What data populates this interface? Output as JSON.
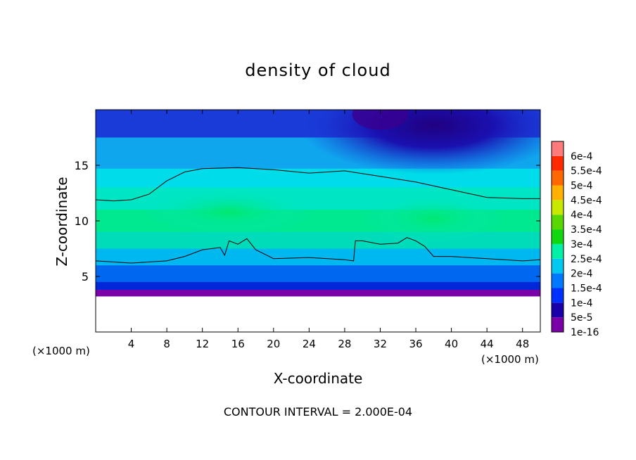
{
  "chart_data": {
    "type": "heatmap",
    "title": "density of cloud",
    "xlabel": "X-coordinate",
    "ylabel": "Z-coordinate",
    "x_unit_left": "(×1000 m)",
    "x_unit_right": "(×1000 m)",
    "xlim": [
      0,
      50
    ],
    "ylim": [
      0,
      20
    ],
    "x_ticks": [
      "4",
      "8",
      "12",
      "16",
      "20",
      "24",
      "28",
      "32",
      "36",
      "40",
      "44",
      "48"
    ],
    "y_ticks": [
      "5",
      "10",
      "15"
    ],
    "colorbar_labels": [
      "1e-16",
      "5e-5",
      "1e-4",
      "1.5e-4",
      "2e-4",
      "2.5e-4",
      "3e-4",
      "3.5e-4",
      "4e-4",
      "4.5e-4",
      "5e-4",
      "5.5e-4",
      "6e-4"
    ],
    "colorbar_colors": [
      "#7a00a8",
      "#1a00a8",
      "#0030ff",
      "#0078ff",
      "#00c8f0",
      "#00f0a8",
      "#10d810",
      "#58d800",
      "#c8e800",
      "#ffb000",
      "#ff6800",
      "#ff2a00",
      "#ff7a7a"
    ],
    "cloud_base": 3.2,
    "contour_lower": [
      [
        0,
        6.4
      ],
      [
        4,
        6.2
      ],
      [
        8,
        6.4
      ],
      [
        10,
        6.8
      ],
      [
        12,
        7.4
      ],
      [
        14,
        7.6
      ],
      [
        14.5,
        6.9
      ],
      [
        15,
        8.2
      ],
      [
        16,
        7.9
      ],
      [
        17,
        8.4
      ],
      [
        18,
        7.4
      ],
      [
        20,
        6.6
      ],
      [
        24,
        6.7
      ],
      [
        28,
        6.5
      ],
      [
        29,
        6.4
      ],
      [
        29.2,
        8.2
      ],
      [
        30,
        8.2
      ],
      [
        32,
        7.9
      ],
      [
        34,
        8.0
      ],
      [
        35,
        8.5
      ],
      [
        36,
        8.2
      ],
      [
        37,
        7.7
      ],
      [
        38,
        6.8
      ],
      [
        40,
        6.8
      ],
      [
        44,
        6.6
      ],
      [
        48,
        6.4
      ],
      [
        50,
        6.5
      ]
    ],
    "contour_upper": [
      [
        0,
        11.9
      ],
      [
        2,
        11.8
      ],
      [
        4,
        11.9
      ],
      [
        6,
        12.4
      ],
      [
        8,
        13.6
      ],
      [
        10,
        14.4
      ],
      [
        12,
        14.7
      ],
      [
        16,
        14.8
      ],
      [
        20,
        14.6
      ],
      [
        24,
        14.3
      ],
      [
        28,
        14.5
      ],
      [
        32,
        14.0
      ],
      [
        36,
        13.5
      ],
      [
        40,
        12.8
      ],
      [
        44,
        12.1
      ],
      [
        48,
        12.0
      ],
      [
        50,
        12.0
      ]
    ],
    "bands": [
      {
        "z": 20.0,
        "color": "#1a3bd8"
      },
      {
        "z": 17.5,
        "color": "#0fa6ee"
      },
      {
        "z": 14.7,
        "color": "#00dcea"
      },
      {
        "z": 13.0,
        "color": "#00e6c4"
      },
      {
        "z": 11.0,
        "color": "#00e890"
      },
      {
        "z": 9.0,
        "color": "#00dcba"
      },
      {
        "z": 7.5,
        "color": "#00b8f0"
      },
      {
        "z": 6.0,
        "color": "#0068f0"
      },
      {
        "z": 4.5,
        "color": "#0028d8"
      },
      {
        "z": 3.8,
        "color": "#7a00a8"
      }
    ]
  },
  "footer": "CONTOUR INTERVAL = 2.000E-04"
}
